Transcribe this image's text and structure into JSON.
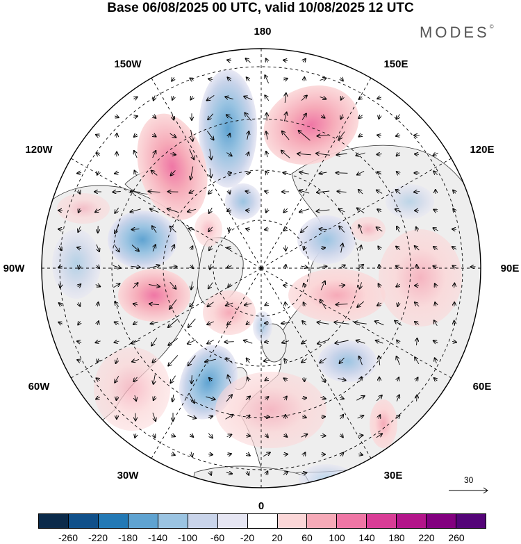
{
  "title": "Base 06/08/2025 00 UTC, valid 10/08/2025 12 UTC",
  "brand": "MODES",
  "brand_mark": "©",
  "longitude_labels": {
    "top": "180",
    "bottom": "0",
    "left": "90W",
    "right": "90E",
    "upper_left_150": "150W",
    "upper_left_120": "120W",
    "lower_left_60": "60W",
    "lower_left_30": "30W",
    "upper_right_150": "150E",
    "upper_right_120": "120E",
    "lower_right_60": "60E",
    "lower_right_30": "30E"
  },
  "reference_vector": {
    "label": "30",
    "value": 30
  },
  "colorbar": {
    "colors": [
      "#0b2a4a",
      "#10508a",
      "#2379b5",
      "#5fa3d1",
      "#9bc4e2",
      "#c9d4ea",
      "#e6e6f3",
      "#ffffff",
      "#fbd7d8",
      "#f6aab8",
      "#ef76a5",
      "#d93d96",
      "#b3158a",
      "#82007f",
      "#540478"
    ],
    "ticks": [
      "-260",
      "-220",
      "-180",
      "-140",
      "-100",
      "-60",
      "-20",
      "20",
      "60",
      "100",
      "140",
      "180",
      "220",
      "260"
    ]
  },
  "colors": {
    "land": "#eeeeee",
    "ocean": "#ffffff",
    "coast": "#333333",
    "grid": "#000000"
  }
}
